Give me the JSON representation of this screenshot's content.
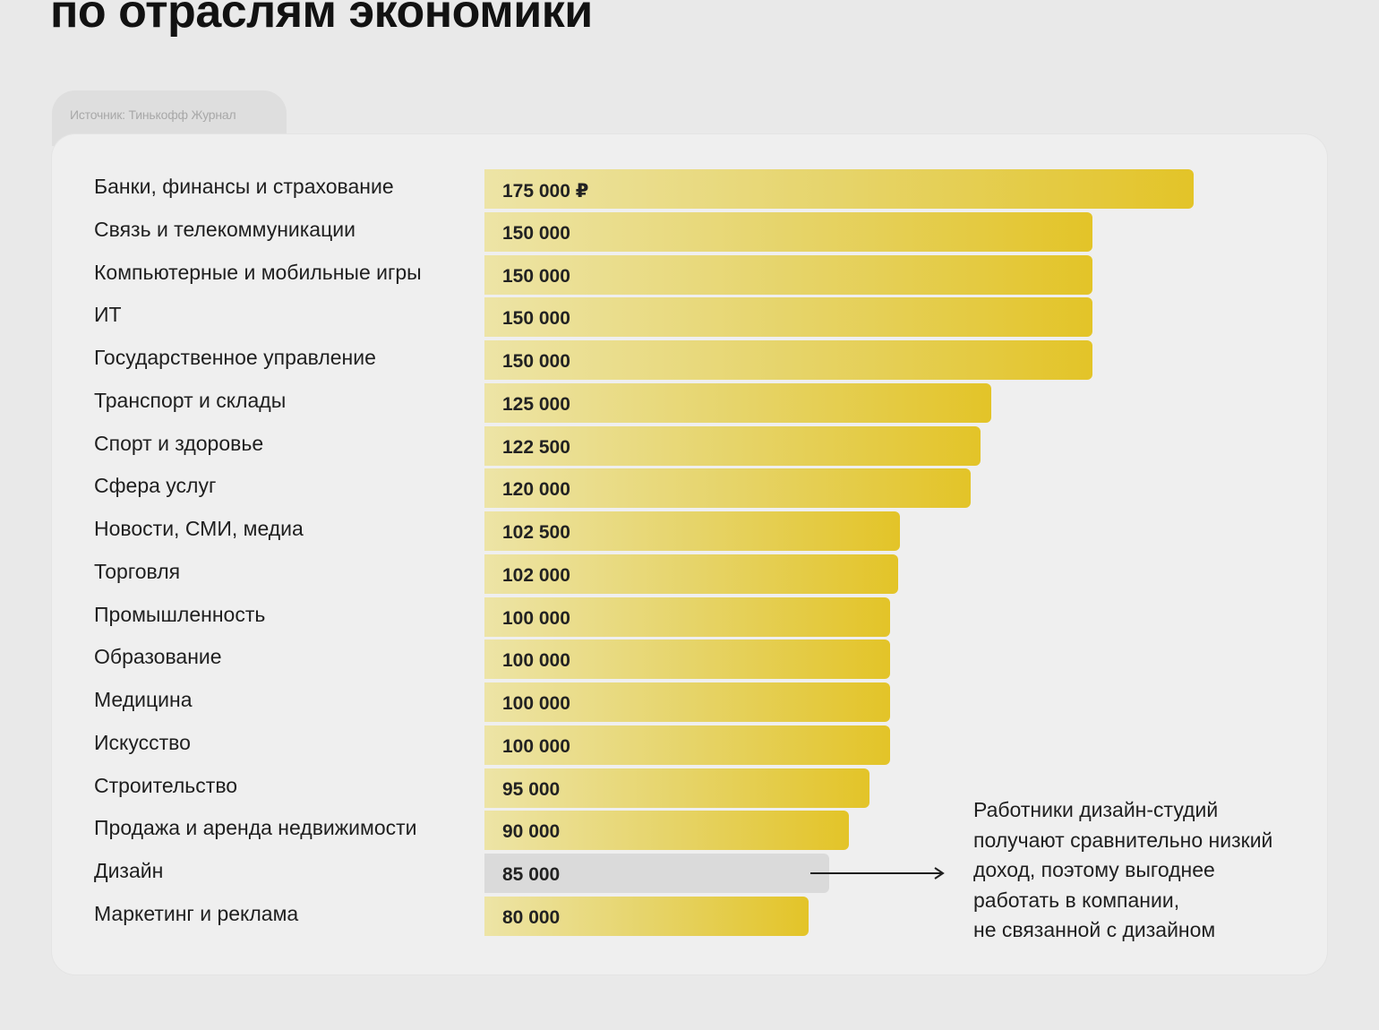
{
  "title": "по отраслям экономики",
  "source": "Источник: Тинькофф Журнал",
  "annotation": "Работники дизайн-студий\nполучают сравнительно низкий\nдоход, поэтому выгоднее\nработать в компании,\nне связанной с дизайном",
  "colors": {
    "bar_start": "#ede4a6",
    "bar_end": "#e3c428",
    "highlight_bar": "#dadada",
    "background": "#e9e9e9",
    "card": "#efefef"
  },
  "chart_data": {
    "type": "bar",
    "orientation": "horizontal",
    "categories": [
      "Банки, финансы и страхование",
      "Связь и телекоммуникации",
      "Компьютерные и мобильные игры",
      "ИТ",
      "Государственное управление",
      "Транспорт и склады",
      "Спорт и здоровье",
      "Сфера услуг",
      "Новости, СМИ, медиа",
      "Торговля",
      "Промышленность",
      "Образование",
      "Медицина",
      "Искусство",
      "Строительство",
      "Продажа и аренда недвижимости",
      "Дизайн",
      "Маркетинг и реклама"
    ],
    "values": [
      175000,
      150000,
      150000,
      150000,
      150000,
      125000,
      122500,
      120000,
      102500,
      102000,
      100000,
      100000,
      100000,
      100000,
      95000,
      90000,
      85000,
      80000
    ],
    "value_labels": [
      "175 000 ₽",
      "150 000",
      "150 000",
      "150 000",
      "150 000",
      "125 000",
      "122 500",
      "120 000",
      "102 500",
      "102 000",
      "100 000",
      "100 000",
      "100 000",
      "100 000",
      "95 000",
      "90 000",
      "85 000",
      "80 000"
    ],
    "highlighted_category": "Дизайн",
    "grid": false,
    "legend": "none"
  }
}
